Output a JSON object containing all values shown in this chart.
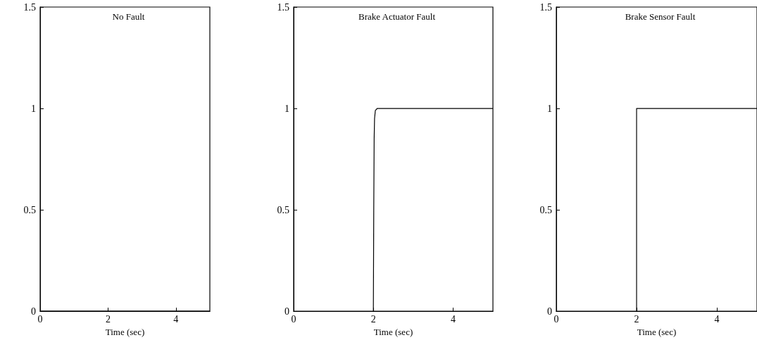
{
  "chart_data": [
    {
      "type": "line",
      "title": "No Fault",
      "xlabel": "Time (sec)",
      "xlim": [
        0,
        5
      ],
      "xticks": [
        0,
        2,
        4
      ],
      "ylim": [
        0,
        1.5
      ],
      "yticks": [
        0,
        0.5,
        1,
        1.5
      ],
      "grid": false,
      "series": [
        {
          "color": "#000000",
          "x": [
            0,
            5
          ],
          "values": [
            0,
            0
          ]
        }
      ]
    },
    {
      "type": "line",
      "title": "Brake Actuator Fault",
      "xlabel": "Time (sec)",
      "xlim": [
        0,
        5
      ],
      "xticks": [
        0,
        2,
        4
      ],
      "ylim": [
        0,
        1.5
      ],
      "yticks": [
        0,
        0.5,
        1,
        1.5
      ],
      "grid": false,
      "series": [
        {
          "color": "#000000",
          "x": [
            2,
            2.01,
            2.02,
            2.03,
            2.05,
            2.1,
            5
          ],
          "values": [
            0,
            0.5,
            0.85,
            0.95,
            0.99,
            1,
            1
          ]
        }
      ]
    },
    {
      "type": "line",
      "title": "Brake Sensor Fault",
      "xlabel": "Time (sec)",
      "xlim": [
        0,
        5
      ],
      "xticks": [
        0,
        2,
        4
      ],
      "ylim": [
        0,
        1.5
      ],
      "yticks": [
        0,
        0.5,
        1,
        1.5
      ],
      "grid": false,
      "series": [
        {
          "color": "#000000",
          "x": [
            2,
            2,
            5
          ],
          "values": [
            0,
            1,
            1
          ]
        }
      ]
    }
  ]
}
